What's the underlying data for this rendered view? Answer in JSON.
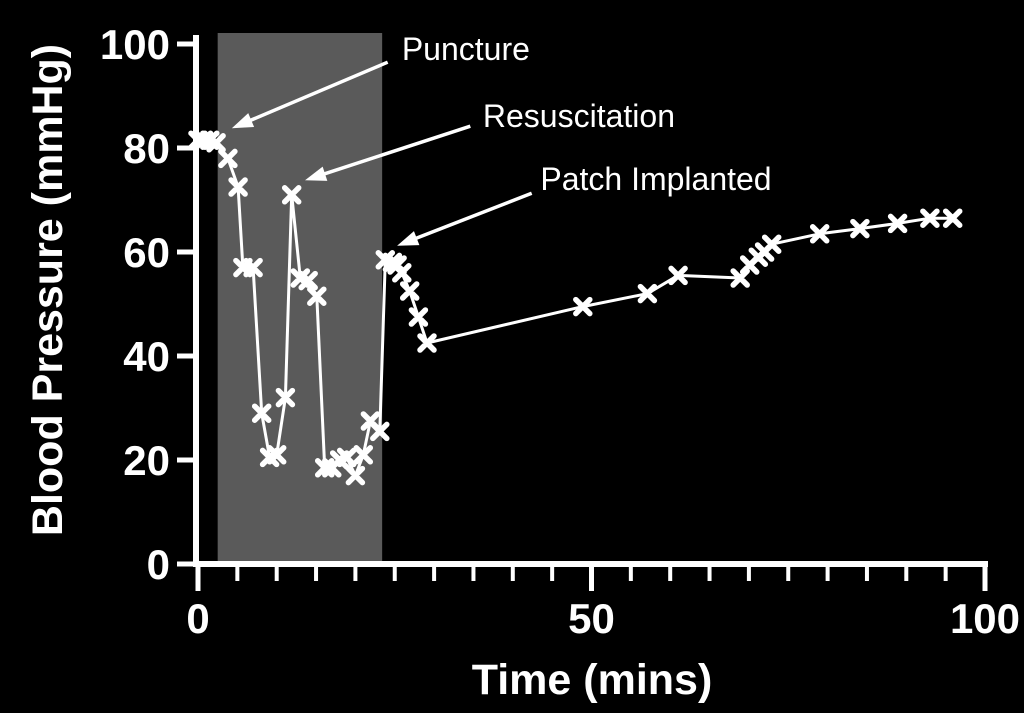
{
  "chart_data": {
    "type": "line",
    "title": "",
    "xlabel": "Time (mins)",
    "ylabel": "Blood Pressure (mmHg)",
    "xlim": [
      0,
      100
    ],
    "ylim": [
      0,
      100
    ],
    "grid": false,
    "background_color": "#000000",
    "foreground_color": "#ffffff",
    "x_major_ticks": [
      {
        "t": 0,
        "label": "0"
      },
      {
        "t": 50,
        "label": "50"
      },
      {
        "t": 100,
        "label": "100"
      }
    ],
    "x_minor_ticks": [
      5,
      10,
      15,
      20,
      25,
      30,
      35,
      40,
      45,
      55,
      60,
      65,
      70,
      75,
      80,
      85,
      90,
      95
    ],
    "y_major_ticks": [
      {
        "v": 0,
        "label": "0"
      },
      {
        "v": 20,
        "label": "20"
      },
      {
        "v": 40,
        "label": "40"
      },
      {
        "v": 60,
        "label": "60"
      },
      {
        "v": 80,
        "label": "80"
      },
      {
        "v": 100,
        "label": "100"
      }
    ],
    "shaded_region": {
      "x_start": 2.5,
      "x_end": 23.4,
      "color": "#5a5a5a"
    },
    "series": [
      {
        "name": "blood-pressure",
        "color": "#ffffff",
        "marker": "x",
        "points": [
          [
            0,
            81.5
          ],
          [
            0.7,
            81.5
          ],
          [
            1.5,
            81.5
          ],
          [
            2.3,
            81
          ],
          [
            3.8,
            78
          ],
          [
            5.1,
            72.5
          ],
          [
            5.7,
            57
          ],
          [
            7.0,
            57
          ],
          [
            8.1,
            29
          ],
          [
            9.1,
            20.5
          ],
          [
            10.0,
            21
          ],
          [
            11.1,
            32
          ],
          [
            11.9,
            71
          ],
          [
            13.0,
            55
          ],
          [
            14.0,
            54.5
          ],
          [
            15.1,
            51.5
          ],
          [
            16.1,
            18.5
          ],
          [
            17.0,
            18.5
          ],
          [
            18.0,
            20
          ],
          [
            18.9,
            20.5
          ],
          [
            20.0,
            17
          ],
          [
            21.0,
            21
          ],
          [
            21.9,
            27.5
          ],
          [
            23.1,
            25.5
          ],
          [
            23.8,
            58.5
          ],
          [
            24.7,
            58
          ],
          [
            25.3,
            57.5
          ],
          [
            25.9,
            56
          ],
          [
            26.9,
            52.5
          ],
          [
            28.0,
            47.5
          ],
          [
            29.1,
            42.5
          ],
          [
            48.9,
            49.5
          ],
          [
            57.1,
            52
          ],
          [
            61.0,
            55.5
          ],
          [
            68.9,
            55
          ],
          [
            70.1,
            57.5
          ],
          [
            71.2,
            59
          ],
          [
            72.0,
            60
          ],
          [
            72.9,
            61.5
          ],
          [
            79.0,
            63.5
          ],
          [
            84.1,
            64.5
          ],
          [
            88.9,
            65.5
          ],
          [
            93.0,
            66.5
          ],
          [
            95.9,
            66.5
          ]
        ]
      }
    ],
    "annotations": [
      {
        "label": "Puncture",
        "text": [
          25.9,
          96.9
        ],
        "arrow_from": [
          24.1,
          96.5
        ],
        "arrow_to": [
          4.3,
          83.8
        ]
      },
      {
        "label": "Resuscitation",
        "text": [
          36.2,
          84.0
        ],
        "arrow_from": [
          34.6,
          84.2
        ],
        "arrow_to": [
          13.6,
          73.8
        ]
      },
      {
        "label": "Patch Implanted",
        "text": [
          43.5,
          71.9
        ],
        "arrow_from": [
          42.4,
          71.3
        ],
        "arrow_to": [
          25.3,
          61.2
        ]
      }
    ]
  }
}
